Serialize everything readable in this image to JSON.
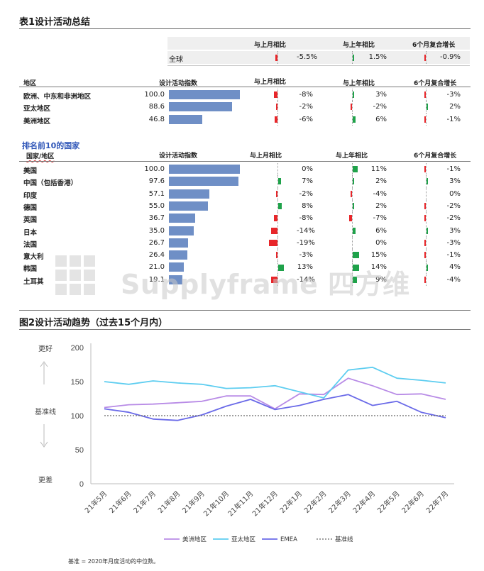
{
  "table_title": "表1设计活动总结",
  "headers": {
    "mom": "与上月相比",
    "yoy": "与上年相比",
    "cagr": "6个月复合增长",
    "index": "设计活动指数",
    "region": "地区",
    "country": "国家/地区"
  },
  "global_row": {
    "label": "全球",
    "mom": "-5.5%",
    "yoy": "1.5%",
    "cagr": "-0.9%",
    "mom_v": -5.5,
    "yoy_v": 1.5,
    "cagr_v": -0.9
  },
  "regions": [
    {
      "name": "欧洲、中东和非洲地区",
      "index": "100.0",
      "index_v": 100.0,
      "mom": "-8%",
      "mom_v": -8,
      "yoy": "3%",
      "yoy_v": 3,
      "cagr": "-3%",
      "cagr_v": -3
    },
    {
      "name": "亚太地区",
      "index": "88.6",
      "index_v": 88.6,
      "mom": "-2%",
      "mom_v": -2,
      "yoy": "-2%",
      "yoy_v": -2,
      "cagr": "2%",
      "cagr_v": 2
    },
    {
      "name": "美洲地区",
      "index": "46.8",
      "index_v": 46.8,
      "mom": "-6%",
      "mom_v": -6,
      "yoy": "6%",
      "yoy_v": 6,
      "cagr": "-1%",
      "cagr_v": -1
    }
  ],
  "top10_title": "排名前10的国家",
  "countries": [
    {
      "name": "美国",
      "index": "100.0",
      "index_v": 100.0,
      "mom": "0%",
      "mom_v": 0,
      "yoy": "11%",
      "yoy_v": 11,
      "cagr": "-1%",
      "cagr_v": -1
    },
    {
      "name": "中国（包括香港）",
      "index": "97.6",
      "index_v": 97.6,
      "mom": "7%",
      "mom_v": 7,
      "yoy": "2%",
      "yoy_v": 2,
      "cagr": "3%",
      "cagr_v": 3
    },
    {
      "name": "印度",
      "index": "57.1",
      "index_v": 57.1,
      "mom": "-2%",
      "mom_v": -2,
      "yoy": "-4%",
      "yoy_v": -4,
      "cagr": "0%",
      "cagr_v": 0
    },
    {
      "name": "德国",
      "index": "55.0",
      "index_v": 55.0,
      "mom": "8%",
      "mom_v": 8,
      "yoy": "2%",
      "yoy_v": 2,
      "cagr": "-2%",
      "cagr_v": -2
    },
    {
      "name": "英国",
      "index": "36.7",
      "index_v": 36.7,
      "mom": "-8%",
      "mom_v": -8,
      "yoy": "-7%",
      "yoy_v": -7,
      "cagr": "-2%",
      "cagr_v": -2
    },
    {
      "name": "日本",
      "index": "35.0",
      "index_v": 35.0,
      "mom": "-14%",
      "mom_v": -14,
      "yoy": "6%",
      "yoy_v": 6,
      "cagr": "3%",
      "cagr_v": 3
    },
    {
      "name": "法国",
      "index": "26.7",
      "index_v": 26.7,
      "mom": "-19%",
      "mom_v": -19,
      "yoy": "0%",
      "yoy_v": 0,
      "cagr": "-3%",
      "cagr_v": -3
    },
    {
      "name": "意大利",
      "index": "26.4",
      "index_v": 26.4,
      "mom": "-3%",
      "mom_v": -3,
      "yoy": "15%",
      "yoy_v": 15,
      "cagr": "-1%",
      "cagr_v": -1
    },
    {
      "name": "韩国",
      "index": "21.0",
      "index_v": 21.0,
      "mom": "13%",
      "mom_v": 13,
      "yoy": "14%",
      "yoy_v": 14,
      "cagr": "4%",
      "cagr_v": 4
    },
    {
      "name": "土耳其",
      "index": "19.1",
      "index_v": 19.1,
      "mom": "-14%",
      "mom_v": -14,
      "yoy": "9%",
      "yoy_v": 9,
      "cagr": "-4%",
      "cagr_v": -4
    }
  ],
  "watermark": "Supplyframe 四方维",
  "chart_title": "图2设计活动趋势（过去15个月内）",
  "colors": {
    "americas": "#b88be6",
    "apac": "#5dcdf0",
    "emea": "#6a6ae8",
    "baseline": "#666666",
    "bar": "#6f8fc6",
    "neg": "#e8262a",
    "pos": "#1fa24a"
  },
  "chart_data": {
    "type": "line",
    "categories": [
      "21年5月",
      "21年6月",
      "21年7月",
      "21年8月",
      "21年9月",
      "21年10月",
      "21年11月",
      "21年12月",
      "22年1月",
      "22年2月",
      "22年3月",
      "22年4月",
      "22年5月",
      "22年6月",
      "22年7月"
    ],
    "series": [
      {
        "name": "美洲地区",
        "values": [
          112,
          116,
          117,
          119,
          121,
          129,
          129,
          110,
          132,
          131,
          155,
          144,
          131,
          132,
          124
        ]
      },
      {
        "name": "亚太地区",
        "values": [
          150,
          146,
          151,
          148,
          146,
          140,
          141,
          144,
          135,
          126,
          167,
          171,
          155,
          152,
          148
        ]
      },
      {
        "name": "EMEA",
        "values": [
          110,
          105,
          95,
          93,
          101,
          114,
          124,
          109,
          115,
          124,
          131,
          115,
          121,
          105,
          97
        ]
      },
      {
        "name": "基准线",
        "values": [
          100,
          100,
          100,
          100,
          100,
          100,
          100,
          100,
          100,
          100,
          100,
          100,
          100,
          100,
          100
        ]
      }
    ],
    "yticks": [
      "0",
      "50",
      "100",
      "150",
      "200"
    ],
    "ylim": [
      0,
      200
    ],
    "annotations": {
      "better": "更好",
      "baseline": "基准线",
      "worse": "更差"
    },
    "legend_position": "bottom"
  },
  "footnote": "基准 = 2020年月度活动的中位数。"
}
